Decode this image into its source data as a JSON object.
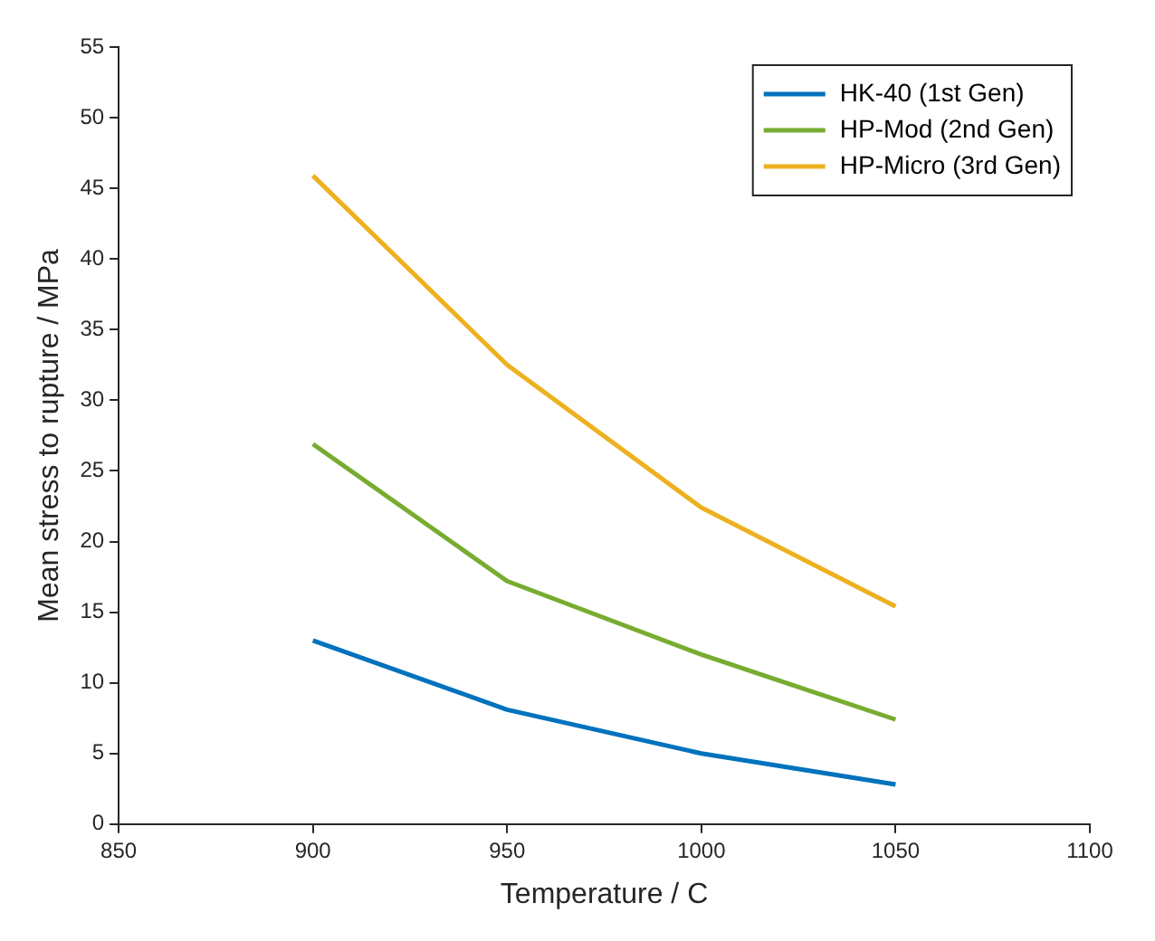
{
  "chart_data": {
    "type": "line",
    "xlabel": "Temperature / C",
    "ylabel": "Mean stress to rupture / MPa",
    "x": [
      900,
      950,
      1000,
      1050
    ],
    "series": [
      {
        "name": "HK-40 (1st Gen)",
        "color": "#0072bd",
        "values": [
          13.0,
          8.1,
          5.0,
          2.8
        ]
      },
      {
        "name": "HP-Mod (2nd Gen)",
        "color": "#77ac30",
        "values": [
          26.9,
          17.2,
          12.0,
          7.4
        ]
      },
      {
        "name": "HP-Micro (3rd Gen)",
        "color": "#edb120",
        "values": [
          45.9,
          32.5,
          22.4,
          15.4
        ]
      }
    ],
    "xlim": [
      850,
      1100
    ],
    "xticks": [
      850,
      900,
      950,
      1000,
      1050,
      1100
    ],
    "ylim": [
      0,
      55
    ],
    "yticks": [
      0,
      5,
      10,
      15,
      20,
      25,
      30,
      35,
      40,
      45,
      50,
      55
    ],
    "grid": false,
    "legend": "top right",
    "marker": "none",
    "line_style": "solid"
  }
}
